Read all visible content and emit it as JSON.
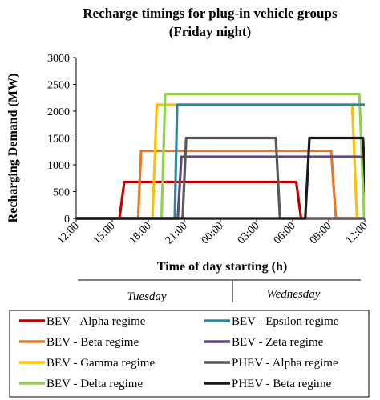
{
  "chart_data": {
    "type": "line",
    "title": "Recharge timings for plug-in vehicle groups",
    "subtitle": "(Friday night)",
    "xlabel": "Time of day starting (h)",
    "ylabel": "Recharging Demand (MW)",
    "x_tick_labels": [
      "12:00",
      "15:00",
      "18:00",
      "21:00",
      "00:00",
      "03:00",
      "06:00",
      "09:00",
      "12:00"
    ],
    "x_range_hours": [
      0,
      48
    ],
    "ylim": [
      0,
      3000
    ],
    "y_ticks": [
      0,
      500,
      1000,
      1500,
      2000,
      2500,
      3000
    ],
    "grid": false,
    "legend_position": "bottom",
    "day_labels": [
      "Tuesday",
      "Wednesday"
    ],
    "series": [
      {
        "name": "BEV - Alpha regime",
        "color": "#c00000",
        "x": [
          0,
          7.2,
          8.0,
          36.6,
          37.4,
          48
        ],
        "y": [
          0,
          0,
          680,
          680,
          0,
          0
        ]
      },
      {
        "name": "BEV - Beta regime",
        "color": "#e07a2a",
        "x": [
          0,
          10.3,
          10.8,
          42.4,
          43.2,
          48
        ],
        "y": [
          0,
          0,
          1260,
          1260,
          0,
          0
        ]
      },
      {
        "name": "BEV - Gamma regime",
        "color": "#ffc000",
        "x": [
          0,
          12.7,
          13.4,
          45.9,
          46.7,
          48
        ],
        "y": [
          0,
          0,
          2120,
          2120,
          0,
          0
        ]
      },
      {
        "name": "BEV - Delta regime",
        "color": "#92d050",
        "x": [
          0,
          14.2,
          14.8,
          47.1,
          47.9,
          48
        ],
        "y": [
          0,
          0,
          2320,
          2320,
          0,
          0
        ]
      },
      {
        "name": "BEV - Epsilon regime",
        "color": "#31859c",
        "x": [
          0,
          16.4,
          16.8,
          50.2,
          50.9,
          48
        ],
        "y": [
          0,
          0,
          2120,
          2120,
          0,
          0
        ]
      },
      {
        "name": "BEV - Zeta regime",
        "color": "#604a7b",
        "x": [
          0,
          16.9,
          17.5,
          51.5,
          52.3,
          48
        ],
        "y": [
          0,
          0,
          1150,
          1150,
          0,
          0
        ]
      },
      {
        "name": "PHEV - Alpha regime",
        "color": "#595959",
        "x": [
          0,
          17.7,
          18.3,
          33.2,
          33.9,
          48
        ],
        "y": [
          0,
          0,
          1500,
          1500,
          0,
          0
        ]
      },
      {
        "name": "PHEV - Beta regime",
        "color": "#1a1a1a",
        "x": [
          0,
          38.1,
          38.8,
          47.7,
          48.4,
          48
        ],
        "y": [
          0,
          0,
          1500,
          1500,
          0,
          0
        ]
      }
    ]
  }
}
